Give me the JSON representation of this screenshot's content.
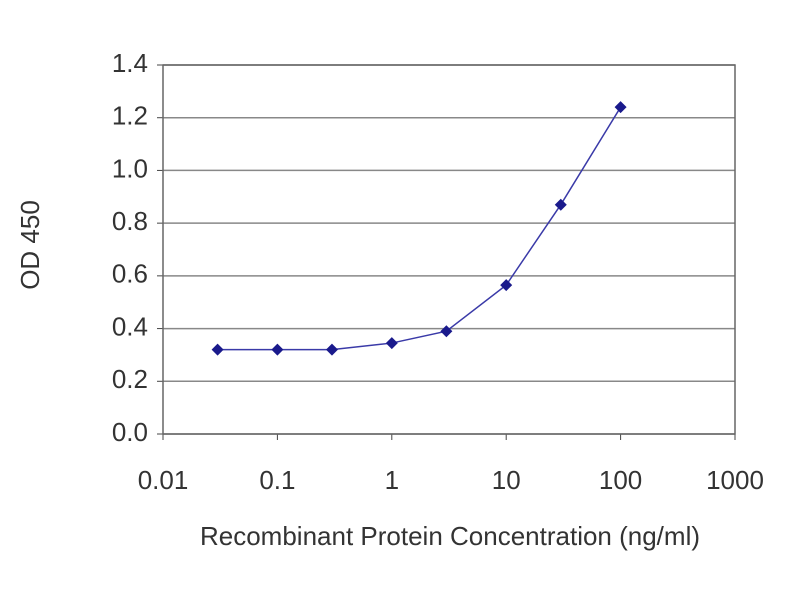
{
  "chart_data": {
    "type": "line",
    "xlabel": "Recombinant Protein Concentration (ng/ml)",
    "ylabel": "OD 450",
    "x": [
      0.03,
      0.1,
      0.3,
      1,
      3,
      10,
      30,
      100
    ],
    "series": [
      {
        "color": "#1a1a8c",
        "values": [
          0.32,
          0.32,
          0.32,
          0.345,
          0.39,
          0.565,
          0.87,
          1.24
        ]
      }
    ],
    "xscale": "log",
    "xlim": [
      0.01,
      1000
    ],
    "xticks": [
      0.01,
      0.1,
      1,
      10,
      100,
      1000
    ],
    "ylim": [
      0,
      1.4
    ],
    "yticks": [
      {
        "value": 0,
        "label": "0.0"
      },
      0.2,
      0.4,
      0.6,
      0.8,
      {
        "value": 1,
        "label": "1.0"
      },
      1.2,
      1.4
    ],
    "grid": true
  }
}
